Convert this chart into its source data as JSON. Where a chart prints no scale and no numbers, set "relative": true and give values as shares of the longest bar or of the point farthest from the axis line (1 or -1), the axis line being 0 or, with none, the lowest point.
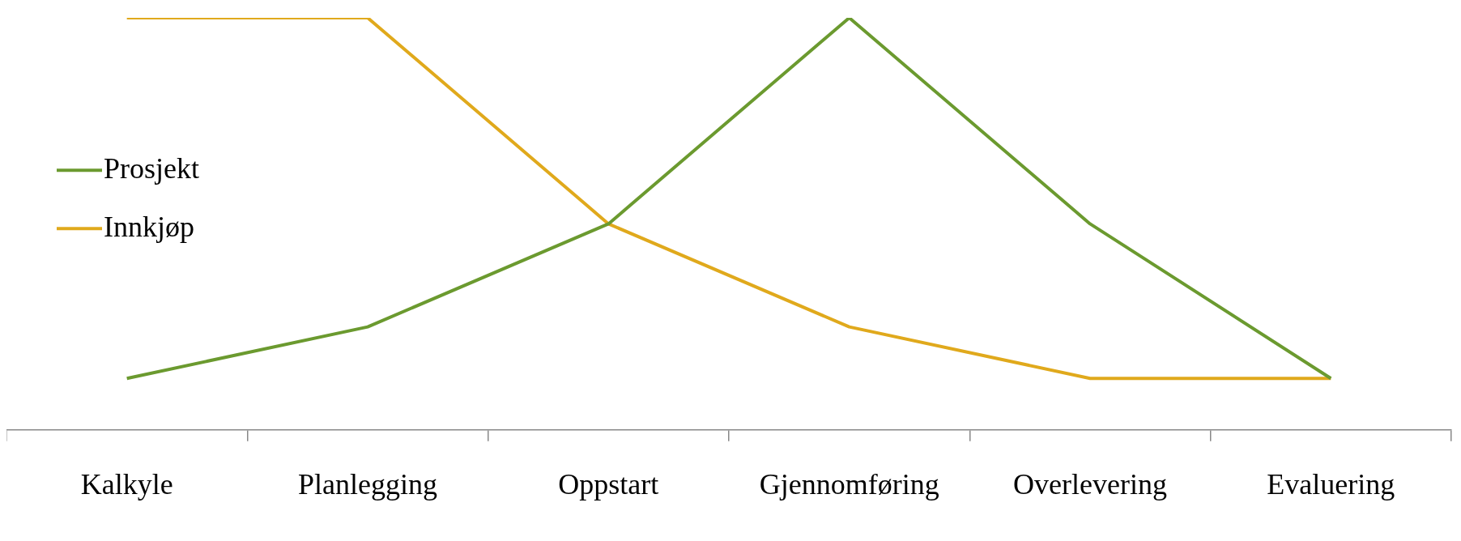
{
  "chart_data": {
    "type": "line",
    "relative": true,
    "categories": [
      "Kalkyle",
      "Planlegging",
      "Oppstart",
      "Gjennomføring",
      "Overlevering",
      "Evaluering"
    ],
    "series": [
      {
        "name": "Prosjekt",
        "color": "#6b9a2f",
        "values": [
          0.125,
          0.25,
          0.5,
          1,
          0.5,
          0.125
        ]
      },
      {
        "name": "Innkjøp",
        "color": "#e0a91c",
        "values": [
          1,
          1,
          0.5,
          0.25,
          0.125,
          0.125
        ]
      }
    ],
    "legend": "left",
    "grid": false,
    "marker": "none",
    "line_style": "solid"
  }
}
